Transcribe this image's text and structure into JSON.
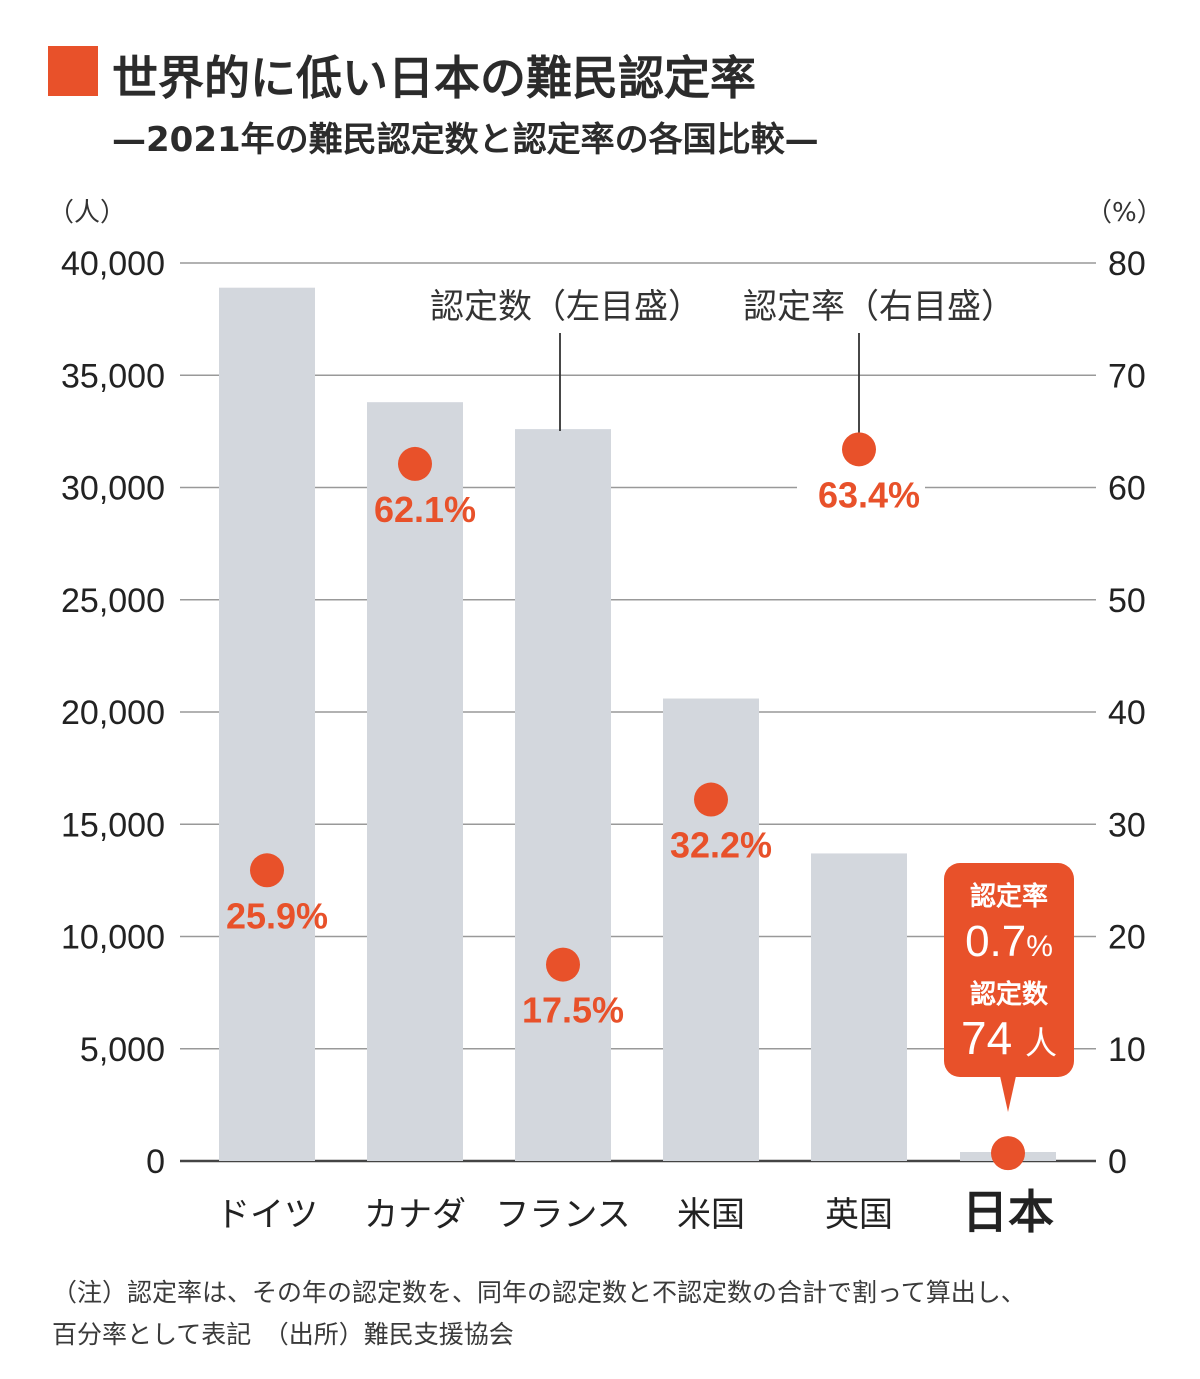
{
  "header": {
    "title": "世界的に低い日本の難民認定率",
    "subtitle": "—2021年の難民認定数と認定率の各国比較—"
  },
  "colors": {
    "accent": "#e8512a",
    "bar": "#d3d7dd",
    "grid": "#999999",
    "text": "#222222"
  },
  "chart_data": {
    "type": "bar",
    "title": "世界的に低い日本の難民認定率",
    "subtitle": "2021年の難民認定数と認定率の各国比較",
    "categories": [
      "ドイツ",
      "カナダ",
      "フランス",
      "米国",
      "英国",
      "日本"
    ],
    "series": [
      {
        "name": "認定数（左目盛）",
        "type": "bar",
        "axis": "left",
        "values": [
          38900,
          33800,
          32600,
          20600,
          13700,
          74
        ]
      },
      {
        "name": "認定率（右目盛）",
        "type": "scatter",
        "axis": "right",
        "values": [
          25.9,
          62.1,
          17.5,
          32.2,
          63.4,
          0.7
        ],
        "labels": [
          "25.9%",
          "62.1%",
          "17.5%",
          "32.2%",
          "63.4%",
          "0.7%"
        ]
      }
    ],
    "ylabel_left": "（人）",
    "ylabel_right": "（%）",
    "ylim_left": [
      0,
      40000
    ],
    "ylim_right": [
      0,
      80
    ],
    "yticks_left": [
      "0",
      "5,000",
      "10,000",
      "15,000",
      "20,000",
      "25,000",
      "30,000",
      "35,000",
      "40,000"
    ],
    "yticks_right": [
      "0",
      "10",
      "20",
      "30",
      "40",
      "50",
      "60",
      "70",
      "80"
    ],
    "grid": true,
    "annotations": {
      "count_label": "認定数（左目盛）",
      "rate_label": "認定率（右目盛）",
      "japan_callout": {
        "rate_title": "認定率",
        "rate_value": "0.7",
        "rate_unit": "%",
        "count_title": "認定数",
        "count_value": "74",
        "count_unit": "人"
      }
    },
    "highlight_category": "日本"
  },
  "footer": {
    "note_line1": "（注）認定率は、その年の認定数を、同年の認定数と不認定数の合計で割って算出し、",
    "note_line2": "百分率として表記　（出所）難民支援協会"
  }
}
